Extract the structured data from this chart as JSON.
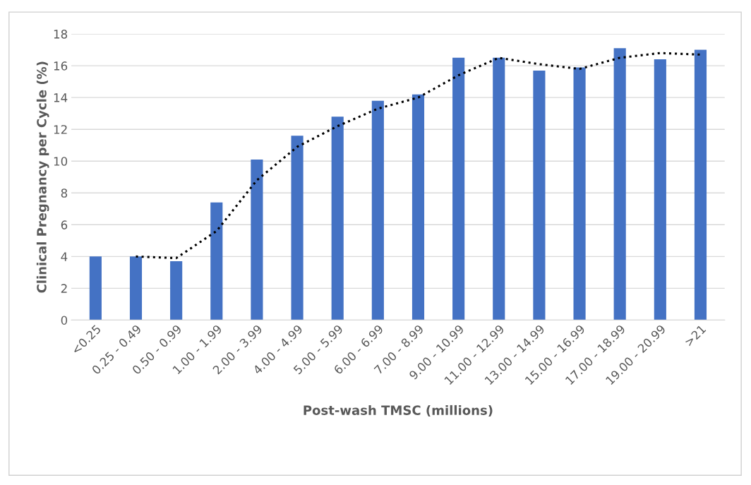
{
  "chart_data": {
    "type": "bar",
    "xlabel": "Post-wash TMSC (millions)",
    "ylabel": "Clinical Pregnancy per Cycle (%)",
    "categories": [
      "<0.25",
      "0.25 - 0.49",
      "0.50 - 0.99",
      "1.00 - 1.99",
      "2.00 - 3.99",
      "4.00 - 4.99",
      "5.00 - 5.99",
      "6.00 - 6.99",
      "7.00 - 8.99",
      "9.00 - 10.99",
      "11.00 - 12.99",
      "13.00 - 14.99",
      "15.00 - 16.99",
      "17.00 - 18.99",
      "19.00 - 20.99",
      ">21"
    ],
    "series": [
      {
        "color": "#4472c4",
        "values": [
          4.0,
          4.0,
          3.7,
          7.4,
          10.1,
          11.6,
          12.8,
          13.8,
          14.2,
          16.5,
          16.5,
          15.7,
          15.9,
          17.1,
          16.4,
          17.0
        ]
      },
      {
        "type": "line",
        "color": "#000000",
        "line_style": "dotted",
        "values": [
          null,
          4.0,
          3.9,
          5.6,
          8.8,
          10.9,
          12.2,
          13.3,
          14.0,
          15.4,
          16.5,
          16.1,
          15.8,
          16.5,
          16.8,
          16.7
        ]
      }
    ],
    "ylim": [
      0,
      18
    ],
    "yticks": [
      0,
      2,
      4,
      6,
      8,
      10,
      12,
      14,
      16,
      18
    ],
    "grid": "y",
    "legend": false
  }
}
